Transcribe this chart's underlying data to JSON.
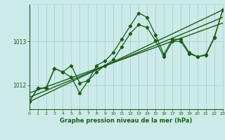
{
  "title": "Graphe pression niveau de la mer (hPa)",
  "bg_color": "#cceae7",
  "grid_color": "#aad4d0",
  "line_color": "#1a5c1a",
  "x_min": 0,
  "x_max": 23,
  "y_min": 1011.45,
  "y_max": 1013.85,
  "y_ticks": [
    1012,
    1013
  ],
  "x_ticks": [
    0,
    1,
    2,
    3,
    4,
    5,
    6,
    7,
    8,
    9,
    10,
    11,
    12,
    13,
    14,
    15,
    16,
    17,
    18,
    19,
    20,
    21,
    22,
    23
  ],
  "series1_x": [
    0,
    1,
    2,
    3,
    4,
    5,
    6,
    7,
    8,
    9,
    10,
    11,
    12,
    13,
    14,
    15,
    16,
    17,
    18,
    19,
    20,
    21,
    22,
    23
  ],
  "series1_y": [
    1011.62,
    1011.93,
    1011.93,
    1012.38,
    1012.3,
    1012.45,
    1012.05,
    1012.1,
    1012.45,
    1012.55,
    1012.75,
    1013.05,
    1013.35,
    1013.65,
    1013.55,
    1013.15,
    1012.7,
    1013.05,
    1013.05,
    1012.75,
    1012.65,
    1012.7,
    1013.1,
    1013.72
  ],
  "series2_x": [
    0,
    1,
    2,
    3,
    4,
    5,
    6,
    7,
    8,
    9,
    10,
    11,
    12,
    13,
    14,
    15,
    16,
    17,
    18,
    19,
    20,
    21,
    22,
    23
  ],
  "series2_y": [
    1011.62,
    1011.93,
    1011.93,
    1012.38,
    1012.3,
    1012.18,
    1011.82,
    1012.1,
    1012.3,
    1012.45,
    1012.58,
    1012.88,
    1013.18,
    1013.38,
    1013.32,
    1013.02,
    1012.65,
    1013.0,
    1013.0,
    1012.72,
    1012.65,
    1012.68,
    1013.08,
    1013.72
  ],
  "trend_lines": [
    {
      "x0": 0,
      "y0": 1011.62,
      "x1": 23,
      "y1": 1013.72
    },
    {
      "x0": 0,
      "y0": 1011.72,
      "x1": 23,
      "y1": 1013.55
    },
    {
      "x0": 0,
      "y0": 1011.82,
      "x1": 23,
      "y1": 1013.42
    }
  ]
}
